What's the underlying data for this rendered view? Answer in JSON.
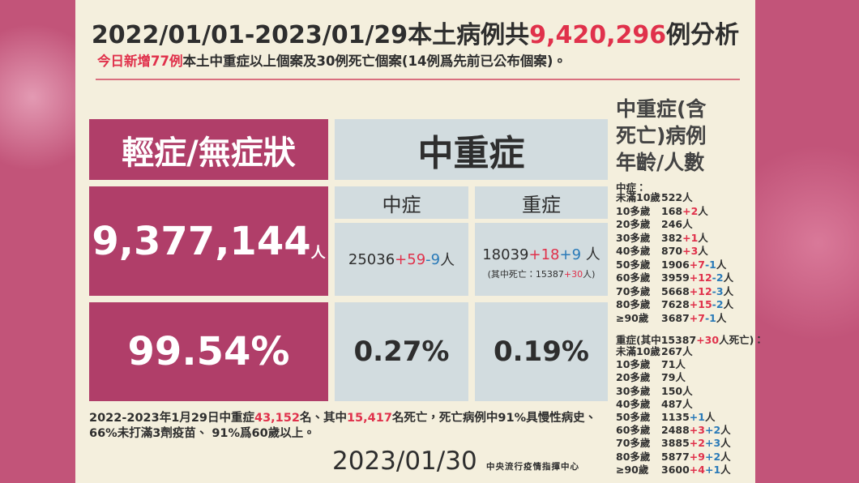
{
  "title": {
    "parts": [
      {
        "text": "2022/01/01-2023/01/29本土病例共"
      },
      {
        "text": "9,420,296",
        "color": "#e0314b"
      },
      {
        "text": "例分析"
      }
    ]
  },
  "subtitle": {
    "parts": [
      {
        "text": "今日新增77例",
        "color": "#e0314b"
      },
      {
        "text": "本土中重症以上個案及30例死亡個案(14例爲先前已公布個案)。"
      }
    ]
  },
  "mild": {
    "header": "輕症/無症狀",
    "count": "9,377,144",
    "unit": "人",
    "percent": "99.54%"
  },
  "severe": {
    "header": "中重症",
    "moderate": {
      "label": "中症",
      "count": {
        "parts": [
          {
            "text": "25036"
          },
          {
            "text": "+59",
            "color": "#e0314b"
          },
          {
            "text": "-9",
            "color": "#2a7ab8"
          },
          {
            "text": " 人"
          }
        ]
      },
      "percent": "0.27%"
    },
    "critical": {
      "label": "重症",
      "count": {
        "parts": [
          {
            "text": "18039"
          },
          {
            "text": "+18",
            "color": "#e0314b"
          },
          {
            "text": "+9",
            "color": "#2a7ab8"
          },
          {
            "text": " 人"
          }
        ]
      },
      "deaths": {
        "parts": [
          {
            "text": "(其中死亡：15387"
          },
          {
            "text": "+30",
            "color": "#e0314b"
          },
          {
            "text": "人)"
          }
        ]
      },
      "percent": "0.19%"
    }
  },
  "summary": {
    "lines": [
      {
        "parts": [
          {
            "text": "2022-2023年1月29日中重症"
          },
          {
            "text": "43,152",
            "color": "#e0314b"
          },
          {
            "text": "名、其中"
          },
          {
            "text": "15,417",
            "color": "#e0314b"
          },
          {
            "text": "名死亡，死亡病例中91%具慢性病史、"
          }
        ]
      },
      {
        "parts": [
          {
            "text": "66%未打滿3劑疫苗、 91%爲60歲以上。"
          }
        ]
      }
    ]
  },
  "date": "2023/01/30",
  "source": "中央流行疫情指揮中心",
  "age_panel": {
    "title_lines": [
      "中重症(含",
      "死亡)病例",
      "年齡/人數"
    ],
    "moderate": {
      "header": {
        "parts": [
          {
            "text": "中症："
          }
        ]
      },
      "rows": [
        {
          "age": "未滿10歲",
          "parts": [
            {
              "text": "522"
            },
            {
              "text": "人"
            }
          ]
        },
        {
          "age": "10多歲",
          "parts": [
            {
              "text": "168"
            },
            {
              "text": "+2",
              "color": "#e0314b"
            },
            {
              "text": "人"
            }
          ]
        },
        {
          "age": "20多歲",
          "parts": [
            {
              "text": "246"
            },
            {
              "text": "人"
            }
          ]
        },
        {
          "age": "30多歲",
          "parts": [
            {
              "text": "382"
            },
            {
              "text": "+1",
              "color": "#e0314b"
            },
            {
              "text": "人"
            }
          ]
        },
        {
          "age": "40多歲",
          "parts": [
            {
              "text": "870"
            },
            {
              "text": "+3",
              "color": "#e0314b"
            },
            {
              "text": "人"
            }
          ]
        },
        {
          "age": "50多歲",
          "parts": [
            {
              "text": "1906"
            },
            {
              "text": "+7",
              "color": "#e0314b"
            },
            {
              "text": "-1",
              "color": "#2a7ab8"
            },
            {
              "text": "人"
            }
          ]
        },
        {
          "age": "60多歲",
          "parts": [
            {
              "text": "3959"
            },
            {
              "text": "+12",
              "color": "#e0314b"
            },
            {
              "text": "-2",
              "color": "#2a7ab8"
            },
            {
              "text": "人"
            }
          ]
        },
        {
          "age": "70多歲",
          "parts": [
            {
              "text": "5668"
            },
            {
              "text": "+12",
              "color": "#e0314b"
            },
            {
              "text": "-3",
              "color": "#2a7ab8"
            },
            {
              "text": "人"
            }
          ]
        },
        {
          "age": "80多歲",
          "parts": [
            {
              "text": "7628"
            },
            {
              "text": "+15",
              "color": "#e0314b"
            },
            {
              "text": "-2",
              "color": "#2a7ab8"
            },
            {
              "text": "人"
            }
          ]
        },
        {
          "age": "≥90歲",
          "parts": [
            {
              "text": "3687"
            },
            {
              "text": "+7",
              "color": "#e0314b"
            },
            {
              "text": "-1",
              "color": "#2a7ab8"
            },
            {
              "text": "人"
            }
          ]
        }
      ]
    },
    "critical": {
      "header": {
        "parts": [
          {
            "text": "重症(其中15387"
          },
          {
            "text": "+30",
            "color": "#e0314b"
          },
          {
            "text": "人死亡)："
          }
        ]
      },
      "rows": [
        {
          "age": "未滿10歲",
          "parts": [
            {
              "text": "267"
            },
            {
              "text": "人"
            }
          ]
        },
        {
          "age": "10多歲",
          "parts": [
            {
              "text": "71"
            },
            {
              "text": "人"
            }
          ]
        },
        {
          "age": "20多歲",
          "parts": [
            {
              "text": "79"
            },
            {
              "text": "人"
            }
          ]
        },
        {
          "age": "30多歲",
          "parts": [
            {
              "text": "150"
            },
            {
              "text": "人"
            }
          ]
        },
        {
          "age": "40多歲",
          "parts": [
            {
              "text": "487"
            },
            {
              "text": "人"
            }
          ]
        },
        {
          "age": "50多歲",
          "parts": [
            {
              "text": "1135"
            },
            {
              "text": "+1",
              "color": "#2a7ab8"
            },
            {
              "text": "人"
            }
          ]
        },
        {
          "age": "60多歲",
          "parts": [
            {
              "text": "2488"
            },
            {
              "text": "+3",
              "color": "#e0314b"
            },
            {
              "text": "+2",
              "color": "#2a7ab8"
            },
            {
              "text": "人"
            }
          ]
        },
        {
          "age": "70多歲",
          "parts": [
            {
              "text": "3885"
            },
            {
              "text": "+2",
              "color": "#e0314b"
            },
            {
              "text": "+3",
              "color": "#2a7ab8"
            },
            {
              "text": "人"
            }
          ]
        },
        {
          "age": "80多歲",
          "parts": [
            {
              "text": "5877"
            },
            {
              "text": "+9",
              "color": "#e0314b"
            },
            {
              "text": "+2",
              "color": "#2a7ab8"
            },
            {
              "text": "人"
            }
          ]
        },
        {
          "age": "≥90歲",
          "parts": [
            {
              "text": "3600"
            },
            {
              "text": "+4",
              "color": "#e0314b"
            },
            {
              "text": "+1",
              "color": "#2a7ab8"
            },
            {
              "text": "人"
            }
          ]
        }
      ]
    }
  }
}
